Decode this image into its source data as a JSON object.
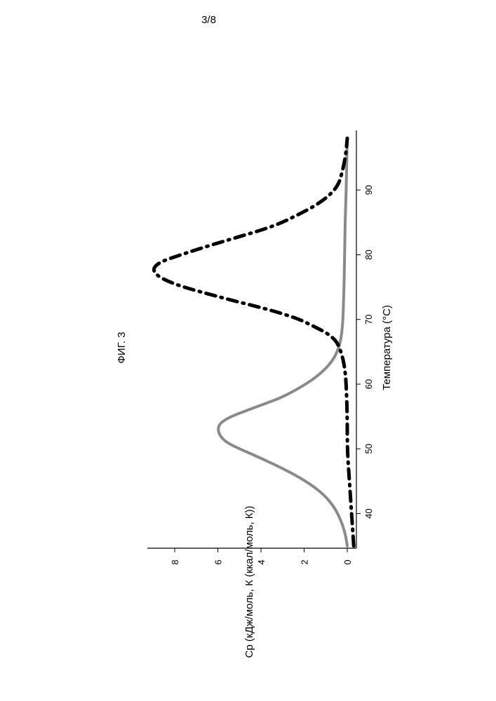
{
  "page": {
    "number": "3/8"
  },
  "chart_data": {
    "type": "line",
    "title": "ФИГ. 3",
    "xlabel": "Температура (°С)",
    "ylabel": "Cp (кДж/моль, К (ккал/моль, К))",
    "xlim": [
      34,
      99
    ],
    "ylim": [
      -0.6,
      9.5
    ],
    "x_ticks": [
      "40",
      "50",
      "60",
      "70",
      "80",
      "90"
    ],
    "y_ticks": [
      "0",
      "2",
      "4",
      "6",
      "8"
    ],
    "grid": false,
    "orientation": "rotated 90° counter-clockwise on page",
    "series": [
      {
        "style": "solid-gray",
        "color": "#8a8a8a",
        "x": [
          35,
          37,
          39,
          41,
          43,
          45,
          47,
          49,
          50,
          51,
          52,
          53,
          54,
          55,
          56,
          57,
          58,
          60,
          62,
          64,
          66,
          68,
          70,
          75,
          80,
          85,
          90,
          95,
          98
        ],
        "y": [
          0.0,
          0.1,
          0.3,
          0.6,
          1.1,
          1.9,
          3.0,
          4.3,
          5.0,
          5.6,
          5.9,
          6.0,
          5.9,
          5.4,
          4.6,
          3.8,
          3.0,
          1.9,
          1.1,
          0.6,
          0.35,
          0.25,
          0.2,
          0.15,
          0.12,
          0.1,
          0.05,
          0.02,
          0.0
        ]
      },
      {
        "style": "dash-dot-black",
        "color": "#000000",
        "x": [
          35,
          40,
          45,
          50,
          55,
          60,
          62,
          64,
          66,
          67,
          68,
          69,
          70,
          71,
          72,
          73,
          74,
          75,
          76,
          77,
          78,
          79,
          80,
          81,
          82,
          83,
          84,
          85,
          86,
          87,
          88,
          89,
          90,
          91,
          92,
          94,
          96,
          98
        ],
        "y": [
          -0.3,
          -0.2,
          -0.1,
          0.0,
          0.0,
          0.05,
          0.1,
          0.2,
          0.4,
          0.6,
          1.0,
          1.6,
          2.2,
          3.1,
          4.2,
          5.4,
          6.5,
          7.6,
          8.4,
          8.9,
          9.0,
          8.6,
          7.7,
          6.8,
          5.8,
          4.8,
          3.8,
          3.0,
          2.4,
          1.8,
          1.3,
          0.9,
          0.6,
          0.4,
          0.3,
          0.15,
          0.05,
          0.0
        ]
      }
    ]
  }
}
